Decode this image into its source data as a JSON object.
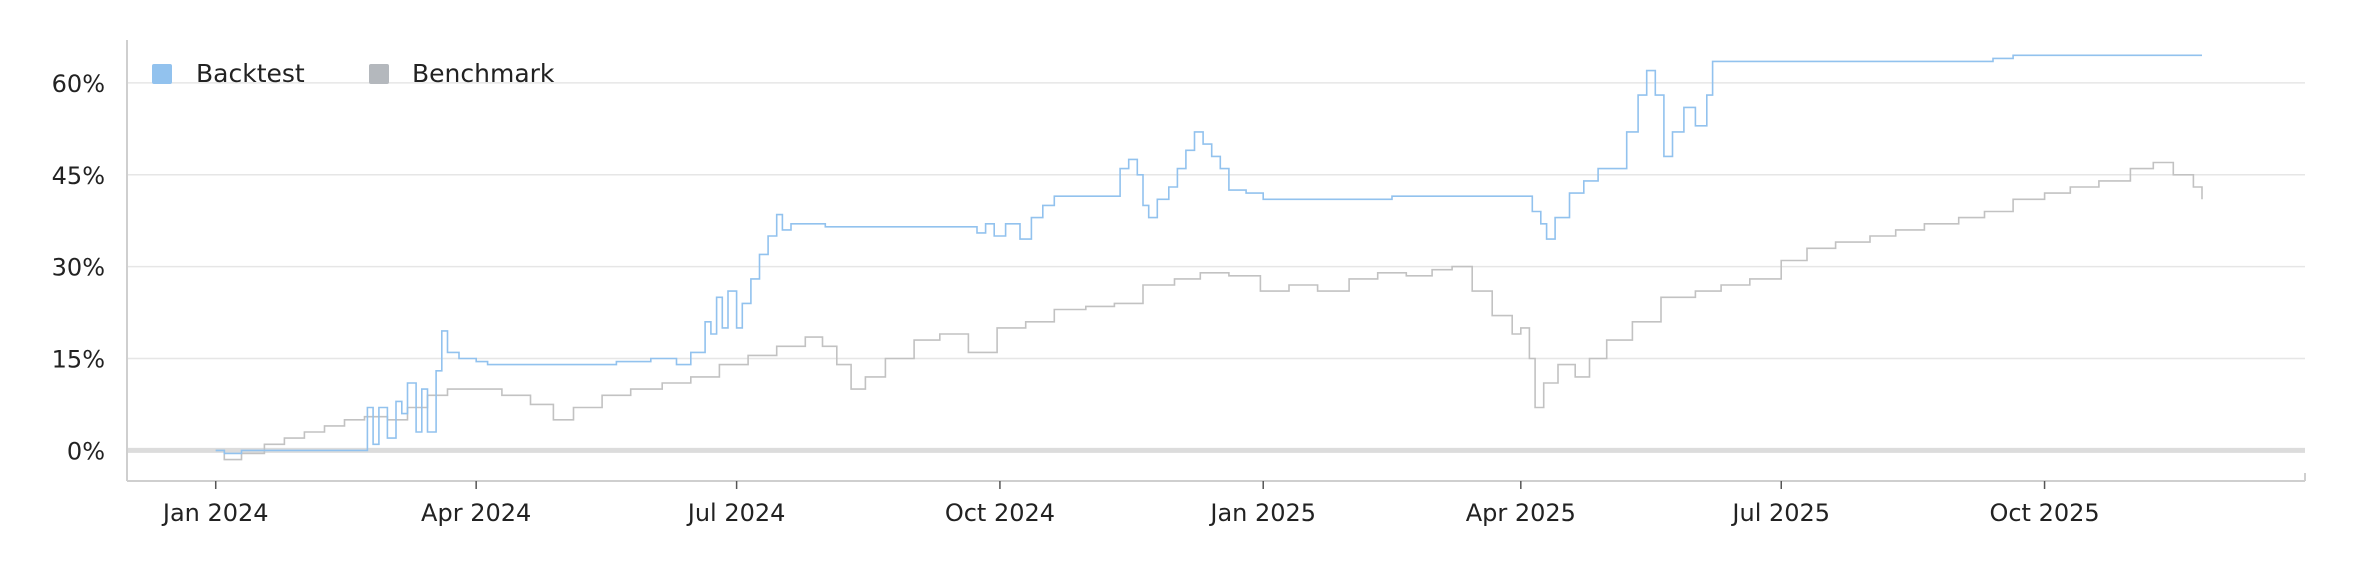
{
  "chart_data": {
    "type": "line",
    "title": "",
    "xlabel": "",
    "ylabel": "",
    "legend": {
      "placement": "top-left",
      "items": [
        "Backtest",
        "Benchmark"
      ]
    },
    "grid": {
      "x": false,
      "y": true
    },
    "xlim": [
      "2023-12-01",
      "2025-12-31"
    ],
    "ylim": [
      -5,
      67
    ],
    "x_ticks": [
      {
        "date": "2024-01-01",
        "label": "Jan 2024"
      },
      {
        "date": "2024-04-01",
        "label": "Apr 2024"
      },
      {
        "date": "2024-07-01",
        "label": "Jul 2024"
      },
      {
        "date": "2024-10-01",
        "label": "Oct 2024"
      },
      {
        "date": "2025-01-01",
        "label": "Jan 2025"
      },
      {
        "date": "2025-04-01",
        "label": "Apr 2025"
      },
      {
        "date": "2025-07-01",
        "label": "Jul 2025"
      },
      {
        "date": "2025-10-01",
        "label": "Oct 2025"
      }
    ],
    "y_ticks": [
      {
        "value": 0,
        "label": "0%"
      },
      {
        "value": 15,
        "label": "15%"
      },
      {
        "value": 30,
        "label": "30%"
      },
      {
        "value": 45,
        "label": "45%"
      },
      {
        "value": 60,
        "label": "60%"
      }
    ],
    "series": [
      {
        "name": "Backtest",
        "color": "#92c2ee",
        "step": true,
        "points": [
          [
            "2024-01-01",
            0
          ],
          [
            "2024-01-04",
            -0.5
          ],
          [
            "2024-01-10",
            0
          ],
          [
            "2024-01-22",
            0
          ],
          [
            "2024-02-01",
            0
          ],
          [
            "2024-02-20",
            0
          ],
          [
            "2024-02-23",
            7
          ],
          [
            "2024-02-25",
            1
          ],
          [
            "2024-02-27",
            7
          ],
          [
            "2024-03-01",
            2
          ],
          [
            "2024-03-04",
            8
          ],
          [
            "2024-03-06",
            6
          ],
          [
            "2024-03-08",
            11
          ],
          [
            "2024-03-11",
            3
          ],
          [
            "2024-03-13",
            10
          ],
          [
            "2024-03-15",
            3
          ],
          [
            "2024-03-18",
            13
          ],
          [
            "2024-03-20",
            19.5
          ],
          [
            "2024-03-22",
            16
          ],
          [
            "2024-03-26",
            15
          ],
          [
            "2024-04-01",
            14.5
          ],
          [
            "2024-04-05",
            14
          ],
          [
            "2024-04-10",
            14
          ],
          [
            "2024-05-01",
            14
          ],
          [
            "2024-05-20",
            14.5
          ],
          [
            "2024-06-01",
            15
          ],
          [
            "2024-06-10",
            14
          ],
          [
            "2024-06-15",
            16
          ],
          [
            "2024-06-20",
            21
          ],
          [
            "2024-06-22",
            19
          ],
          [
            "2024-06-24",
            25
          ],
          [
            "2024-06-26",
            20
          ],
          [
            "2024-06-28",
            26
          ],
          [
            "2024-07-01",
            20
          ],
          [
            "2024-07-03",
            24
          ],
          [
            "2024-07-06",
            28
          ],
          [
            "2024-07-09",
            32
          ],
          [
            "2024-07-12",
            35
          ],
          [
            "2024-07-15",
            38.5
          ],
          [
            "2024-07-17",
            36
          ],
          [
            "2024-07-20",
            37
          ],
          [
            "2024-08-01",
            36.5
          ],
          [
            "2024-09-01",
            36.5
          ],
          [
            "2024-09-20",
            36.5
          ],
          [
            "2024-09-23",
            35.5
          ],
          [
            "2024-09-26",
            37
          ],
          [
            "2024-09-29",
            35
          ],
          [
            "2024-10-03",
            37
          ],
          [
            "2024-10-08",
            34.5
          ],
          [
            "2024-10-12",
            38
          ],
          [
            "2024-10-16",
            40
          ],
          [
            "2024-10-20",
            41.5
          ],
          [
            "2024-11-01",
            41.5
          ],
          [
            "2024-11-10",
            41.5
          ],
          [
            "2024-11-12",
            46
          ],
          [
            "2024-11-15",
            47.5
          ],
          [
            "2024-11-18",
            45
          ],
          [
            "2024-11-20",
            40
          ],
          [
            "2024-11-22",
            38
          ],
          [
            "2024-11-25",
            41
          ],
          [
            "2024-11-29",
            43
          ],
          [
            "2024-12-02",
            46
          ],
          [
            "2024-12-05",
            49
          ],
          [
            "2024-12-08",
            52
          ],
          [
            "2024-12-11",
            50
          ],
          [
            "2024-12-14",
            48
          ],
          [
            "2024-12-17",
            46
          ],
          [
            "2024-12-20",
            42.5
          ],
          [
            "2024-12-26",
            42
          ],
          [
            "2025-01-01",
            41
          ],
          [
            "2025-01-15",
            41
          ],
          [
            "2025-02-01",
            41
          ],
          [
            "2025-02-15",
            41.5
          ],
          [
            "2025-03-01",
            41.5
          ],
          [
            "2025-03-15",
            41.5
          ],
          [
            "2025-04-01",
            41.5
          ],
          [
            "2025-04-05",
            39
          ],
          [
            "2025-04-08",
            37
          ],
          [
            "2025-04-10",
            34.5
          ],
          [
            "2025-04-13",
            38
          ],
          [
            "2025-04-18",
            42
          ],
          [
            "2025-04-23",
            44
          ],
          [
            "2025-04-28",
            46
          ],
          [
            "2025-05-05",
            46
          ],
          [
            "2025-05-08",
            52
          ],
          [
            "2025-05-12",
            58
          ],
          [
            "2025-05-15",
            62
          ],
          [
            "2025-05-18",
            58
          ],
          [
            "2025-05-21",
            48
          ],
          [
            "2025-05-24",
            52
          ],
          [
            "2025-05-28",
            56
          ],
          [
            "2025-06-01",
            53
          ],
          [
            "2025-06-05",
            58
          ],
          [
            "2025-06-07",
            63.5
          ],
          [
            "2025-06-15",
            63.5
          ],
          [
            "2025-07-01",
            63.5
          ],
          [
            "2025-08-01",
            63.5
          ],
          [
            "2025-09-01",
            63.5
          ],
          [
            "2025-09-10",
            63.5
          ],
          [
            "2025-09-13",
            64
          ],
          [
            "2025-09-20",
            64.5
          ],
          [
            "2025-10-05",
            64.5
          ],
          [
            "2025-10-15",
            64.5
          ],
          [
            "2025-11-25",
            64.5
          ]
        ]
      },
      {
        "name": "Benchmark",
        "color": "#c2c2c2",
        "step": true,
        "points": [
          [
            "2024-01-01",
            0
          ],
          [
            "2024-01-04",
            -1.5
          ],
          [
            "2024-01-10",
            -0.5
          ],
          [
            "2024-01-18",
            1
          ],
          [
            "2024-01-25",
            2
          ],
          [
            "2024-02-01",
            3
          ],
          [
            "2024-02-08",
            4
          ],
          [
            "2024-02-15",
            5
          ],
          [
            "2024-02-22",
            5.5
          ],
          [
            "2024-03-01",
            5
          ],
          [
            "2024-03-08",
            7
          ],
          [
            "2024-03-15",
            9
          ],
          [
            "2024-03-22",
            10
          ],
          [
            "2024-04-01",
            10
          ],
          [
            "2024-04-10",
            9
          ],
          [
            "2024-04-20",
            7.5
          ],
          [
            "2024-04-28",
            5
          ],
          [
            "2024-05-05",
            7
          ],
          [
            "2024-05-15",
            9
          ],
          [
            "2024-05-25",
            10
          ],
          [
            "2024-06-05",
            11
          ],
          [
            "2024-06-15",
            12
          ],
          [
            "2024-06-25",
            14
          ],
          [
            "2024-07-05",
            15.5
          ],
          [
            "2024-07-15",
            17
          ],
          [
            "2024-07-25",
            18.5
          ],
          [
            "2024-07-31",
            17
          ],
          [
            "2024-08-05",
            14
          ],
          [
            "2024-08-10",
            10
          ],
          [
            "2024-08-15",
            12
          ],
          [
            "2024-08-22",
            15
          ],
          [
            "2024-09-01",
            18
          ],
          [
            "2024-09-10",
            19
          ],
          [
            "2024-09-20",
            16
          ],
          [
            "2024-09-30",
            20
          ],
          [
            "2024-10-10",
            21
          ],
          [
            "2024-10-20",
            23
          ],
          [
            "2024-10-31",
            23.5
          ],
          [
            "2024-11-10",
            24
          ],
          [
            "2024-11-20",
            27
          ],
          [
            "2024-12-01",
            28
          ],
          [
            "2024-12-10",
            29
          ],
          [
            "2024-12-20",
            28.5
          ],
          [
            "2024-12-31",
            26
          ],
          [
            "2025-01-10",
            27
          ],
          [
            "2025-01-20",
            26
          ],
          [
            "2025-01-31",
            28
          ],
          [
            "2025-02-10",
            29
          ],
          [
            "2025-02-20",
            28.5
          ],
          [
            "2025-03-01",
            29.5
          ],
          [
            "2025-03-08",
            30
          ],
          [
            "2025-03-15",
            26
          ],
          [
            "2025-03-22",
            22
          ],
          [
            "2025-03-29",
            19
          ],
          [
            "2025-04-01",
            20
          ],
          [
            "2025-04-04",
            15
          ],
          [
            "2025-04-06",
            7
          ],
          [
            "2025-04-09",
            11
          ],
          [
            "2025-04-14",
            14
          ],
          [
            "2025-04-20",
            12
          ],
          [
            "2025-04-25",
            15
          ],
          [
            "2025-05-01",
            18
          ],
          [
            "2025-05-10",
            21
          ],
          [
            "2025-05-20",
            25
          ],
          [
            "2025-06-01",
            26
          ],
          [
            "2025-06-10",
            27
          ],
          [
            "2025-06-20",
            28
          ],
          [
            "2025-07-01",
            31
          ],
          [
            "2025-07-10",
            33
          ],
          [
            "2025-07-20",
            34
          ],
          [
            "2025-08-01",
            35
          ],
          [
            "2025-08-10",
            36
          ],
          [
            "2025-08-20",
            37
          ],
          [
            "2025-09-01",
            38
          ],
          [
            "2025-09-10",
            39
          ],
          [
            "2025-09-20",
            41
          ],
          [
            "2025-10-01",
            42
          ],
          [
            "2025-10-10",
            43
          ],
          [
            "2025-10-20",
            44
          ],
          [
            "2025-10-31",
            46
          ],
          [
            "2025-11-08",
            47
          ],
          [
            "2025-11-15",
            45
          ],
          [
            "2025-11-22",
            43
          ],
          [
            "2025-11-25",
            41
          ]
        ]
      }
    ]
  }
}
